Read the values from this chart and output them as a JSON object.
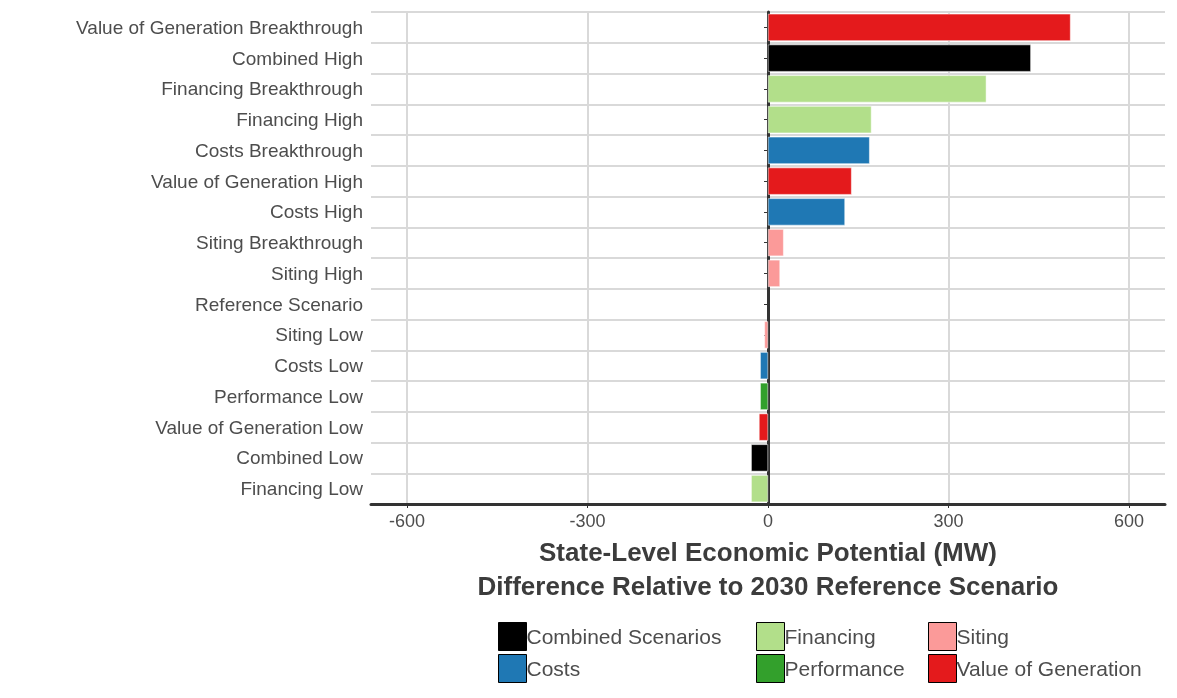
{
  "chart_data": {
    "type": "bar",
    "orientation": "horizontal",
    "stacked": true,
    "xlabel": "State-Level Economic Potential (MW)\nDifference Relative to 2030 Reference Scenario",
    "categories": [
      "Value of Generation Breakthrough",
      "Combined High",
      "Financing Breakthrough",
      "Financing High",
      "Costs Breakthrough",
      "Value of Generation High",
      "Costs High",
      "Siting Breakthrough",
      "Siting High",
      "Reference Scenario",
      "Siting Low",
      "Costs Low",
      "Performance Low",
      "Value of Generation Low",
      "Combined Low",
      "Financing Low"
    ],
    "series": [
      {
        "name": "Combined Scenarios",
        "color": "#000000",
        "values": [
          null,
          437,
          null,
          null,
          null,
          null,
          null,
          null,
          null,
          null,
          null,
          null,
          null,
          null,
          -28,
          null
        ]
      },
      {
        "name": "Costs",
        "color": "#1f78b4",
        "values": [
          null,
          null,
          null,
          null,
          169,
          null,
          128,
          null,
          null,
          null,
          null,
          -13,
          null,
          null,
          null,
          null
        ]
      },
      {
        "name": "Financing",
        "color": "#b2df8a",
        "values": [
          null,
          null,
          363,
          172,
          null,
          null,
          null,
          null,
          null,
          null,
          null,
          null,
          null,
          null,
          null,
          -28
        ]
      },
      {
        "name": "Performance",
        "color": "#33a02c",
        "values": [
          null,
          null,
          null,
          null,
          null,
          null,
          null,
          null,
          null,
          null,
          null,
          null,
          -13,
          null,
          null,
          null
        ]
      },
      {
        "name": "Siting",
        "color": "#fb9a99",
        "values": [
          null,
          null,
          null,
          null,
          null,
          null,
          null,
          26,
          20,
          null,
          -6,
          null,
          null,
          null,
          null,
          null
        ]
      },
      {
        "name": "Value of Generation",
        "color": "#e41a1c",
        "values": [
          503,
          null,
          null,
          null,
          null,
          139,
          null,
          null,
          null,
          null,
          null,
          null,
          null,
          -15,
          null,
          null
        ]
      }
    ],
    "xlim": [
      -660,
      660
    ],
    "xticks": [
      -600,
      -300,
      0,
      300,
      600
    ],
    "grid": true,
    "legend": "bottom"
  }
}
